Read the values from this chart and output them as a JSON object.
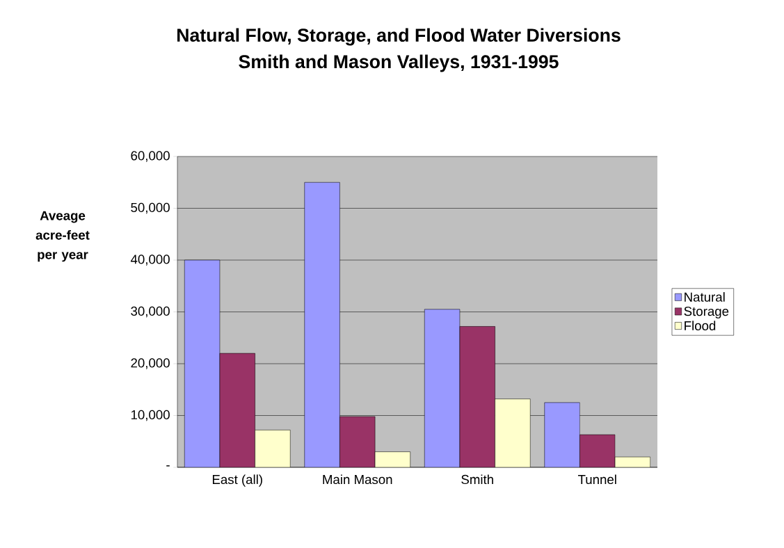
{
  "chart_data": {
    "type": "bar",
    "title": "Natural Flow, Storage, and Flood Water Diversions",
    "subtitle": "Smith and Mason Valleys, 1931-1995",
    "ylabel": "Aveage acre-feet per year",
    "categories": [
      "East (all)",
      "Main Mason",
      "Smith",
      "Tunnel"
    ],
    "series": [
      {
        "name": "Natural",
        "color": "#9999ff",
        "values": [
          40000,
          55000,
          30500,
          12500
        ]
      },
      {
        "name": "Storage",
        "color": "#993366",
        "values": [
          22000,
          9800,
          27200,
          6300
        ]
      },
      {
        "name": "Flood",
        "color": "#ffffcc",
        "values": [
          7200,
          3000,
          13200,
          2000
        ]
      }
    ],
    "ylim": [
      0,
      60000
    ],
    "yticks": [
      {
        "value": 0,
        "label": "-"
      },
      {
        "value": 10000,
        "label": "10,000"
      },
      {
        "value": 20000,
        "label": "20,000"
      },
      {
        "value": 30000,
        "label": "30,000"
      },
      {
        "value": 40000,
        "label": "40,000"
      },
      {
        "value": 50000,
        "label": "50,000"
      },
      {
        "value": 60000,
        "label": "60,000"
      }
    ],
    "grid": "y",
    "legend": "right"
  }
}
